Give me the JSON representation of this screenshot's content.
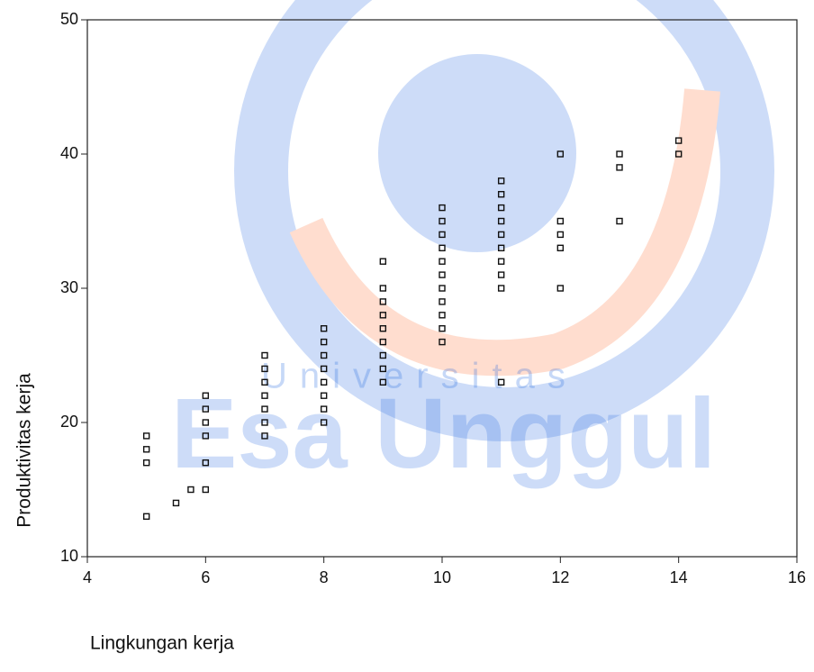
{
  "chart_data": {
    "type": "scatter",
    "x_label": "Lingkungan kerja",
    "y_label": "Produktivitas kerja",
    "watermark": [
      "Universitas",
      "Esa Unggul"
    ],
    "x": [
      5,
      5,
      5,
      5,
      5.5,
      5.75,
      6,
      6,
      6,
      6,
      6,
      6,
      7,
      7,
      7,
      7,
      7,
      7,
      7,
      8,
      8,
      8,
      8,
      8,
      8,
      8,
      8,
      9,
      9,
      9,
      9,
      9,
      9,
      9,
      9,
      9,
      10,
      10,
      10,
      10,
      10,
      10,
      10,
      10,
      10,
      10,
      10,
      11,
      11,
      11,
      11,
      11,
      11,
      11,
      11,
      11,
      11,
      12,
      12,
      12,
      12,
      12,
      13,
      13,
      13,
      14,
      14
    ],
    "values": [
      19,
      18,
      17,
      13,
      14,
      15,
      22,
      21,
      20,
      19,
      17,
      15,
      25,
      24,
      23,
      22,
      21,
      20,
      19,
      27,
      26,
      25,
      24,
      23,
      22,
      21,
      20,
      32,
      30,
      29,
      28,
      27,
      26,
      25,
      24,
      23,
      36,
      35,
      34,
      33,
      32,
      31,
      30,
      29,
      28,
      27,
      26,
      38,
      37,
      36,
      35,
      34,
      33,
      32,
      31,
      30,
      23,
      40,
      35,
      34,
      33,
      30,
      40,
      39,
      35,
      41,
      40
    ],
    "color": "#111111",
    "xlim": [
      4,
      16
    ],
    "xticks": [
      4,
      6,
      8,
      10,
      12,
      14,
      16
    ],
    "ylim": [
      10,
      50
    ],
    "yticks": [
      10,
      20,
      30,
      40,
      50
    ]
  }
}
